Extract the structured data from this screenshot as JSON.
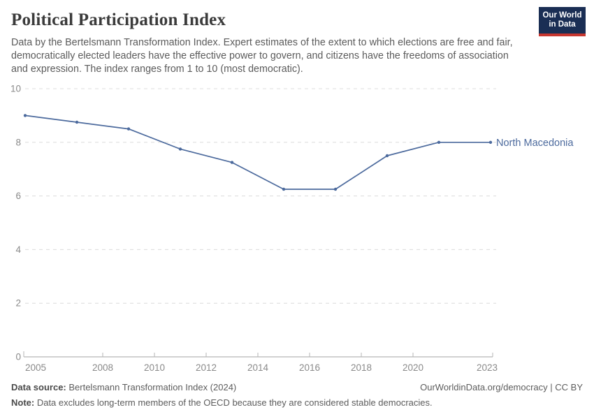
{
  "header": {
    "title": "Political Participation Index",
    "subtitle": "Data by the Bertelsmann Transformation Index. Expert estimates of the extent to which elections are free and fair, democratically elected leaders have the effective power to govern, and citizens have the freedoms of association and expression. The index ranges from 1 to 10 (most democratic).",
    "logo": {
      "line1": "Our World",
      "line2": "in Data",
      "bg_color": "#1a2e54",
      "stripe_color": "#c7362f"
    }
  },
  "chart_data": {
    "type": "line",
    "title": "Political Participation Index",
    "series": [
      {
        "name": "North Macedonia",
        "color": "#4c6a9d",
        "x": [
          2005,
          2007,
          2009,
          2011,
          2013,
          2015,
          2017,
          2019,
          2021,
          2023
        ],
        "values": [
          9.0,
          8.75,
          8.5,
          7.75,
          7.25,
          6.25,
          6.25,
          7.5,
          8.0,
          8.0
        ]
      }
    ],
    "xlabel": "",
    "ylabel": "",
    "xlim": [
      2005,
      2023
    ],
    "ylim": [
      0,
      10
    ],
    "x_ticks": [
      2005,
      2008,
      2010,
      2012,
      2014,
      2016,
      2018,
      2020,
      2023
    ],
    "y_ticks": [
      0,
      2,
      4,
      6,
      8,
      10
    ],
    "grid": "horizontal dashed",
    "legend_position": "end-of-line label",
    "grid_color": "#dcdcdc",
    "axis_color": "#a3a3a3",
    "tick_color": "#b5b5b5"
  },
  "footer": {
    "source_label": "Data source:",
    "source_text": " Bertelsmann Transformation Index (2024)",
    "link_text": "OurWorldinData.org/democracy | CC BY",
    "note_label": "Note:",
    "note_text": " Data excludes long-term members of the OECD because they are considered stable democracies."
  }
}
